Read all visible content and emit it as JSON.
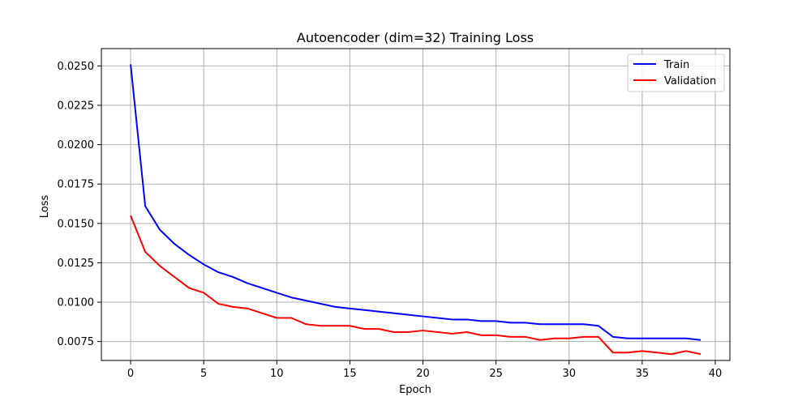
{
  "chart_data": {
    "type": "line",
    "title": "Autoencoder (dim=32) Training Loss",
    "xlabel": "Epoch",
    "ylabel": "Loss",
    "xlim": [
      -2,
      41
    ],
    "ylim": [
      0.0063,
      0.0261
    ],
    "xticks": [
      0,
      5,
      10,
      15,
      20,
      25,
      30,
      35,
      40
    ],
    "yticks": [
      0.0075,
      0.01,
      0.0125,
      0.015,
      0.0175,
      0.02,
      0.0225,
      0.025
    ],
    "ytick_labels": [
      "0.0075",
      "0.0100",
      "0.0125",
      "0.0150",
      "0.0175",
      "0.0200",
      "0.0225",
      "0.0250"
    ],
    "grid": true,
    "legend_position": "top-right",
    "x": [
      0,
      1,
      2,
      3,
      4,
      5,
      6,
      7,
      8,
      9,
      10,
      11,
      12,
      13,
      14,
      15,
      16,
      17,
      18,
      19,
      20,
      21,
      22,
      23,
      24,
      25,
      26,
      27,
      28,
      29,
      30,
      31,
      32,
      33,
      34,
      35,
      36,
      37,
      38,
      39
    ],
    "series": [
      {
        "name": "Train",
        "color": "#0000ff",
        "values": [
          0.0251,
          0.0161,
          0.0146,
          0.0137,
          0.013,
          0.0124,
          0.0119,
          0.0116,
          0.0112,
          0.0109,
          0.0106,
          0.0103,
          0.0101,
          0.0099,
          0.0097,
          0.0096,
          0.0095,
          0.0094,
          0.0093,
          0.0092,
          0.0091,
          0.009,
          0.0089,
          0.0089,
          0.0088,
          0.0088,
          0.0087,
          0.0087,
          0.0086,
          0.0086,
          0.0086,
          0.0086,
          0.0085,
          0.0078,
          0.0077,
          0.0077,
          0.0077,
          0.0077,
          0.0077,
          0.0076
        ]
      },
      {
        "name": "Validation",
        "color": "#ff0000",
        "values": [
          0.0155,
          0.0132,
          0.0123,
          0.0116,
          0.0109,
          0.0106,
          0.0099,
          0.0097,
          0.0096,
          0.0093,
          0.009,
          0.009,
          0.0086,
          0.0085,
          0.0085,
          0.0085,
          0.0083,
          0.0083,
          0.0081,
          0.0081,
          0.0082,
          0.0081,
          0.008,
          0.0081,
          0.0079,
          0.0079,
          0.0078,
          0.0078,
          0.0076,
          0.0077,
          0.0077,
          0.0078,
          0.0078,
          0.0068,
          0.0068,
          0.0069,
          0.0068,
          0.0067,
          0.0069,
          0.0067
        ]
      }
    ]
  }
}
